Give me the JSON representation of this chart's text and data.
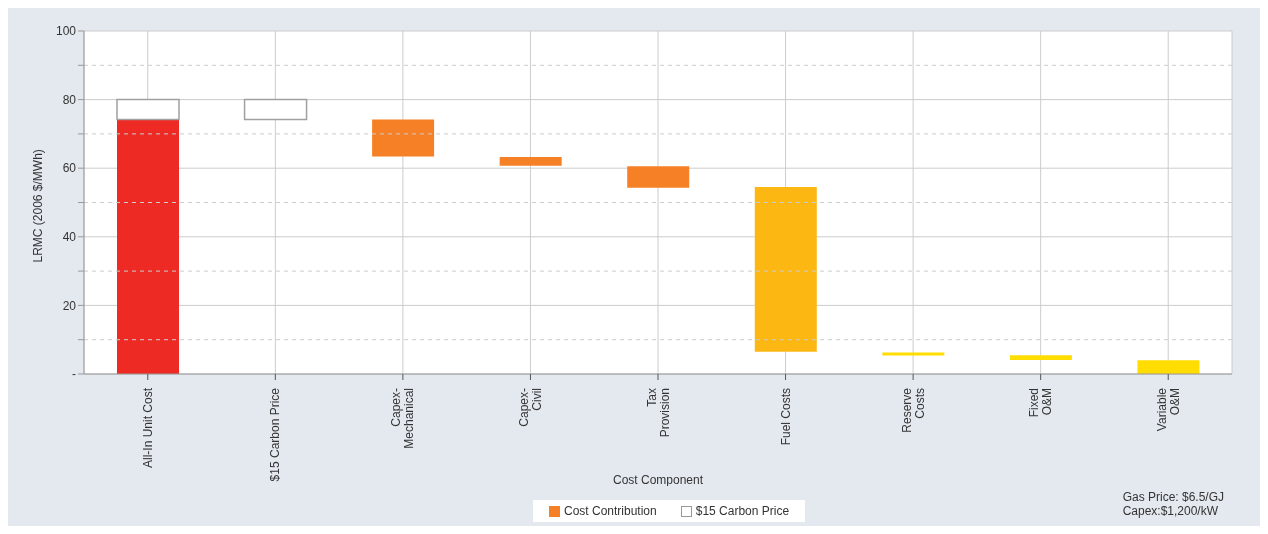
{
  "chart_data": {
    "type": "bar",
    "xlabel": "Cost Component",
    "ylabel": "LRMC (2006 $/MWh)",
    "categories": [
      "All-In Unit Cost",
      "$15 Carbon Price",
      "Capex-\nMechanical",
      "Capex-\nCivil",
      "Tax\nProvision",
      "Fuel Costs",
      "Reserve\nCosts",
      "Fixed\nO&M",
      "Variable\nO&M"
    ],
    "series": [
      {
        "name": "Cost Contribution",
        "color": "#f58025",
        "colors": [
          "#ee2a24",
          null,
          "#f58025",
          "#f58025",
          "#f58025",
          "#fdb713",
          "#ffdd00",
          "#ffdd00",
          "#ffdd00"
        ],
        "values": [
          74.2,
          null,
          10.8,
          2.6,
          6.3,
          48,
          0.9,
          1.4,
          4.0
        ],
        "base": [
          0,
          null,
          63.4,
          60.7,
          54.3,
          6.5,
          5.4,
          4.1,
          0
        ]
      },
      {
        "name": "$15 Carbon Price",
        "color": "#ffffff",
        "values": [
          5.8,
          5.8,
          null,
          null,
          null,
          null,
          null,
          null,
          null
        ],
        "base": [
          74.2,
          74.2,
          null,
          null,
          null,
          null,
          null,
          null,
          null
        ]
      }
    ],
    "ylim": [
      0,
      100
    ],
    "yticks": [
      {
        "value": 0,
        "label": "-"
      },
      {
        "value": 10,
        "label": null
      },
      20,
      {
        "value": 30,
        "label": null
      },
      40,
      {
        "value": 50,
        "label": null
      },
      60,
      {
        "value": 70,
        "label": null
      },
      80,
      {
        "value": 90,
        "label": null
      },
      100
    ],
    "grid": true,
    "legend": "bottom",
    "annotations": [
      "Gas Price: $6.5/GJ",
      "Capex:$1,200/kW"
    ]
  }
}
